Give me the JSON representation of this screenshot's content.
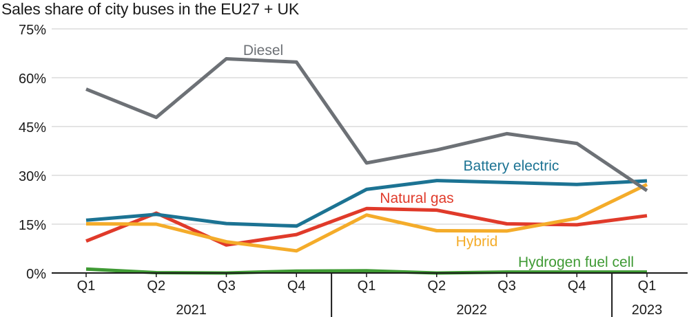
{
  "chart_data": {
    "type": "line",
    "title": "Sales share of city buses in the EU27 + UK",
    "xlabel": "",
    "ylabel": "",
    "ylim": [
      0,
      75
    ],
    "yticks": [
      0,
      15,
      30,
      45,
      60,
      75
    ],
    "ytick_labels": [
      "0%",
      "15%",
      "30%",
      "45%",
      "60%",
      "75%"
    ],
    "categories": [
      "Q1",
      "Q2",
      "Q3",
      "Q4",
      "Q1",
      "Q2",
      "Q3",
      "Q4",
      "Q1"
    ],
    "years": [
      {
        "label": "2021",
        "from": 0,
        "to": 3
      },
      {
        "label": "2022",
        "from": 4,
        "to": 7
      },
      {
        "label": "2023",
        "from": 8,
        "to": 8
      }
    ],
    "grid": true,
    "legend": "inline labels",
    "series": [
      {
        "name": "Diesel",
        "color": "#6d7176",
        "values": [
          56.5,
          47.8,
          65.8,
          64.8,
          33.8,
          37.8,
          42.8,
          39.8,
          25.3
        ]
      },
      {
        "name": "Battery electric",
        "color": "#1c7393",
        "values": [
          16.2,
          18.0,
          15.2,
          14.4,
          25.7,
          28.4,
          27.8,
          27.2,
          28.3
        ]
      },
      {
        "name": "Natural gas",
        "color": "#e03a2a",
        "values": [
          9.8,
          18.4,
          8.6,
          11.8,
          19.8,
          19.3,
          15.1,
          14.8,
          17.6
        ]
      },
      {
        "name": "Hybrid",
        "color": "#f4ac2a",
        "values": [
          15.1,
          15.0,
          9.6,
          6.8,
          17.8,
          13.0,
          12.9,
          16.8,
          27.2
        ]
      },
      {
        "name": "Hydrogen fuel cell",
        "color": "#3f9a34",
        "values": [
          1.2,
          0.1,
          0.0,
          0.6,
          0.7,
          0.0,
          0.3,
          0.3,
          0.3
        ]
      }
    ]
  }
}
